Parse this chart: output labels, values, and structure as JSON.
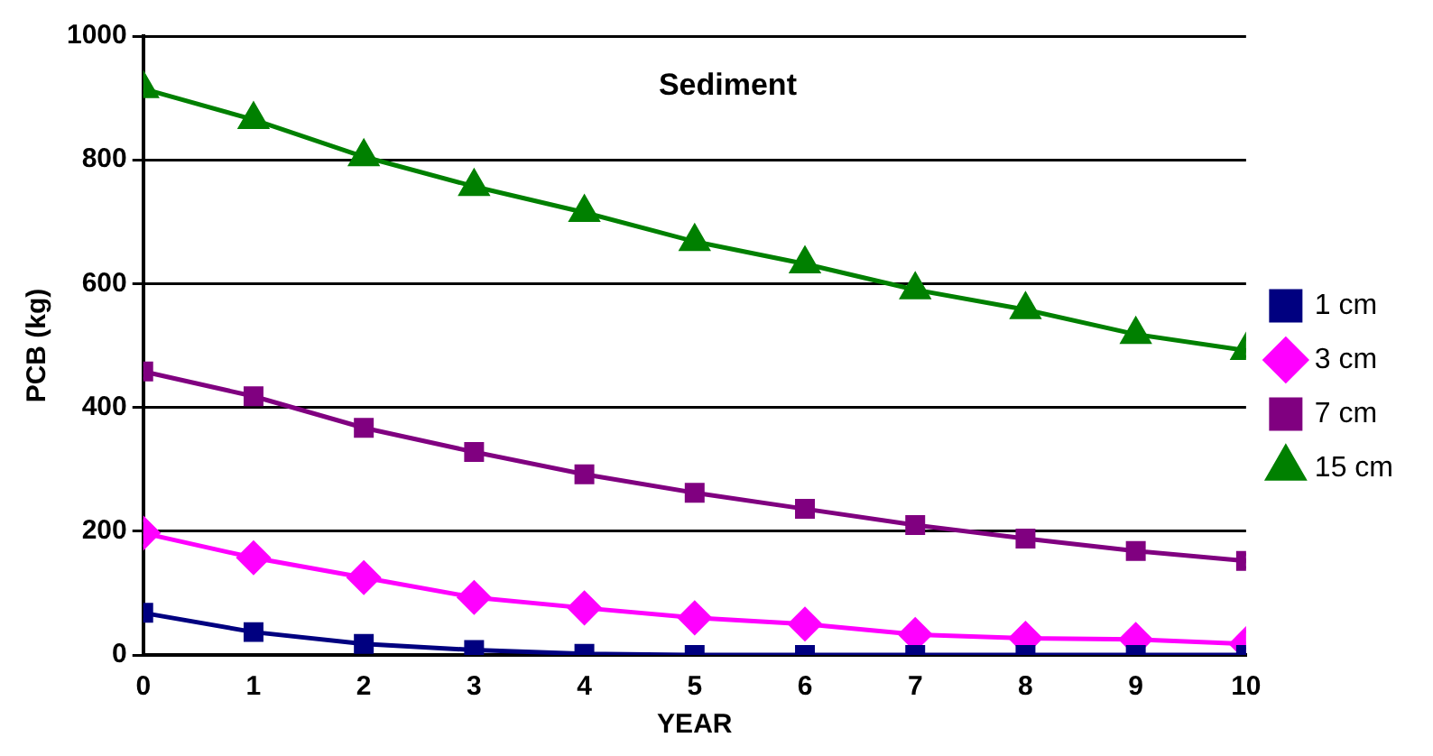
{
  "chart_data": {
    "type": "line",
    "title": "Sediment",
    "xlabel": "YEAR",
    "ylabel": "PCB (kg)",
    "x": [
      0,
      1,
      2,
      3,
      4,
      5,
      6,
      7,
      8,
      9,
      10
    ],
    "xlim": [
      0,
      10
    ],
    "xticks": [
      0,
      1,
      2,
      3,
      4,
      5,
      6,
      7,
      8,
      9,
      10
    ],
    "ylim": [
      0,
      1000
    ],
    "yticks": [
      0,
      200,
      400,
      600,
      800,
      1000
    ],
    "grid": "y",
    "legend": "right",
    "line_style": "solid",
    "series": [
      {
        "name": "1 cm",
        "color": "#000080",
        "marker": "square",
        "values": [
          68,
          37,
          18,
          8,
          2,
          0,
          0,
          0,
          0,
          0,
          0
        ]
      },
      {
        "name": "3 cm",
        "color": "#ff00ff",
        "marker": "diamond",
        "values": [
          197,
          157,
          125,
          93,
          76,
          60,
          50,
          33,
          27,
          25,
          18
        ]
      },
      {
        "name": "7 cm",
        "color": "#800080",
        "marker": "square",
        "values": [
          458,
          418,
          367,
          328,
          292,
          262,
          236,
          210,
          188,
          168,
          152
        ]
      },
      {
        "name": "15 cm",
        "color": "#008000",
        "marker": "triangle",
        "values": [
          915,
          865,
          805,
          757,
          715,
          668,
          632,
          590,
          558,
          518,
          492
        ]
      }
    ]
  }
}
